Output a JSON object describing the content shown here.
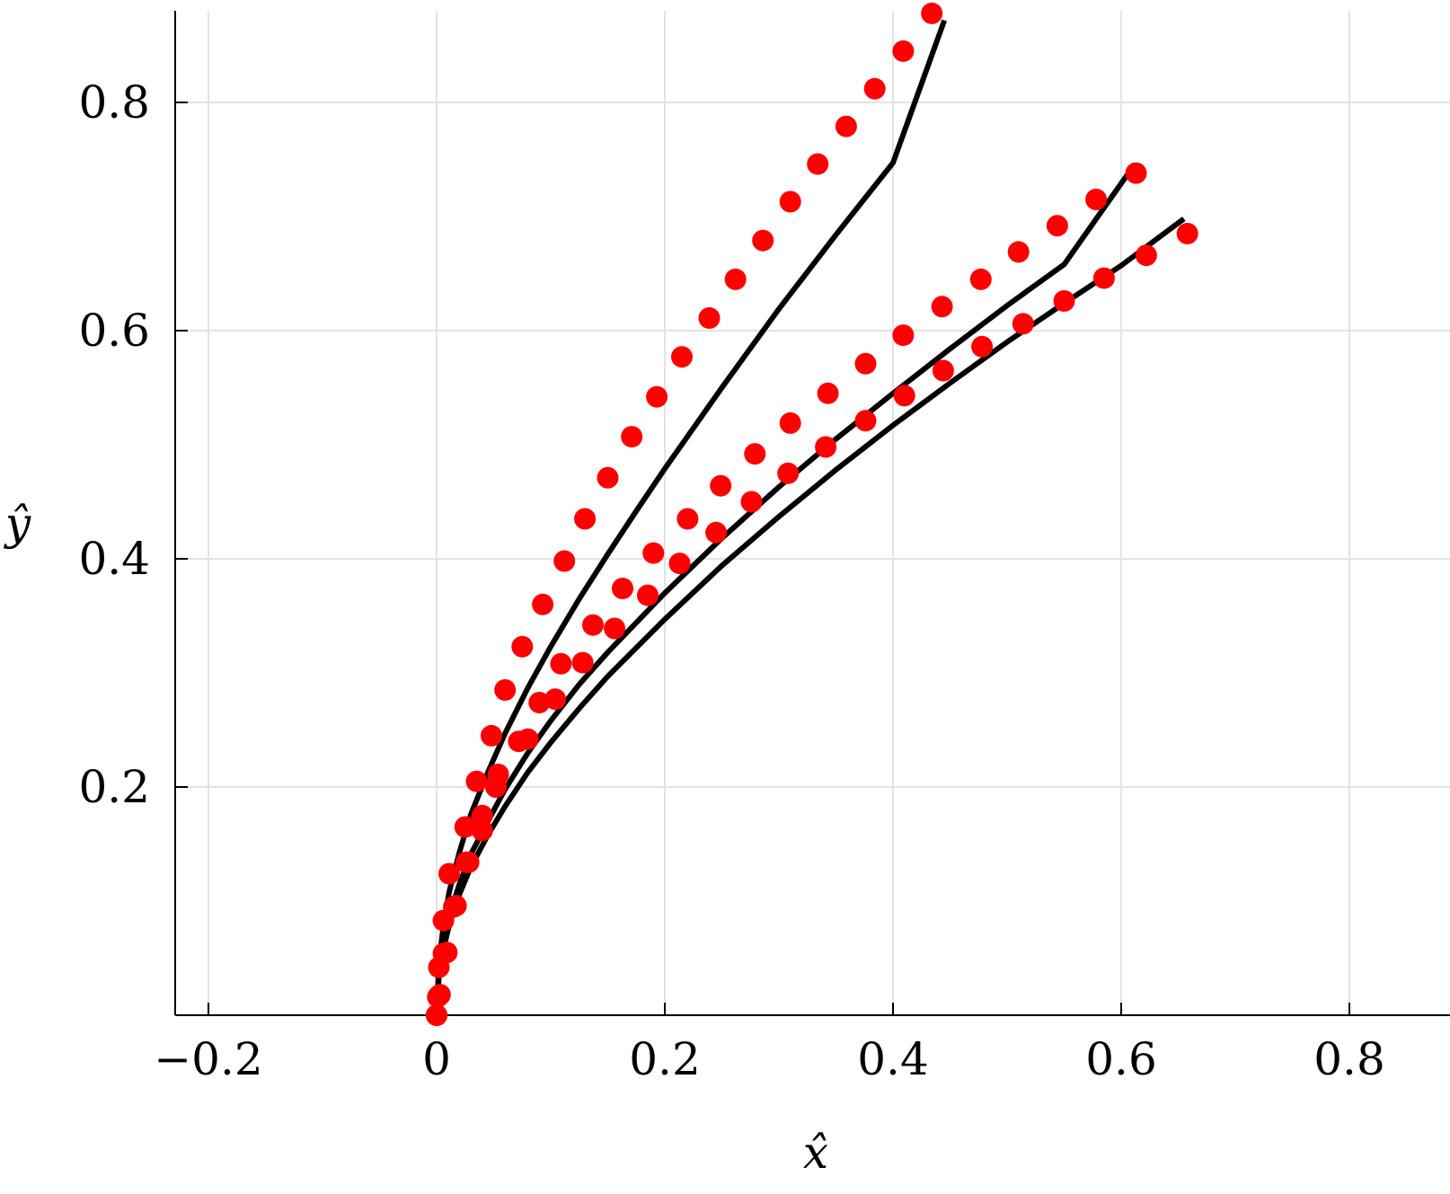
{
  "chart_data": {
    "type": "scatter",
    "title": "",
    "xlabel": "x̂",
    "ylabel": "ŷ",
    "xlim": [
      -0.215,
      0.9
    ],
    "ylim": [
      0,
      0.88
    ],
    "grid": true,
    "xticks": [
      -0.2,
      0,
      0.2,
      0.4,
      0.6,
      0.8
    ],
    "xtick_labels": [
      "−0.2",
      "0",
      "0.2",
      "0.4",
      "0.6",
      "0.8"
    ],
    "yticks": [
      0.2,
      0.4,
      0.6,
      0.8
    ],
    "ytick_labels": [
      "0.2",
      "0.4",
      "0.6",
      "0.8"
    ],
    "marker_color": "#ff0000",
    "line_color": "#000000",
    "series": [
      {
        "kind": "points",
        "points": [
          [
            0,
            0
          ],
          [
            0.001,
            0.016
          ],
          [
            0.002,
            0.042
          ],
          [
            0.006,
            0.083
          ],
          [
            0.011,
            0.124
          ],
          [
            0.025,
            0.165
          ],
          [
            0.035,
            0.205
          ],
          [
            0.048,
            0.245
          ],
          [
            0.06,
            0.285
          ],
          [
            0.075,
            0.323
          ],
          [
            0.093,
            0.36
          ],
          [
            0.112,
            0.398
          ],
          [
            0.13,
            0.435
          ],
          [
            0.15,
            0.471
          ],
          [
            0.171,
            0.507
          ],
          [
            0.193,
            0.542
          ],
          [
            0.215,
            0.577
          ],
          [
            0.239,
            0.611
          ],
          [
            0.262,
            0.645
          ],
          [
            0.286,
            0.679
          ],
          [
            0.31,
            0.713
          ],
          [
            0.334,
            0.746
          ],
          [
            0.359,
            0.779
          ],
          [
            0.384,
            0.812
          ],
          [
            0.409,
            0.845
          ],
          [
            0.434,
            0.878
          ]
        ]
      },
      {
        "kind": "points",
        "points": [
          [
            0,
            0
          ],
          [
            0.002,
            0.017
          ],
          [
            0.006,
            0.054
          ],
          [
            0.015,
            0.095
          ],
          [
            0.026,
            0.134
          ],
          [
            0.04,
            0.175
          ],
          [
            0.054,
            0.211
          ],
          [
            0.072,
            0.24
          ],
          [
            0.09,
            0.274
          ],
          [
            0.109,
            0.308
          ],
          [
            0.137,
            0.342
          ],
          [
            0.163,
            0.374
          ],
          [
            0.19,
            0.405
          ],
          [
            0.22,
            0.435
          ],
          [
            0.249,
            0.464
          ],
          [
            0.279,
            0.492
          ],
          [
            0.31,
            0.519
          ],
          [
            0.343,
            0.545
          ],
          [
            0.376,
            0.571
          ],
          [
            0.409,
            0.596
          ],
          [
            0.443,
            0.621
          ],
          [
            0.477,
            0.645
          ],
          [
            0.51,
            0.669
          ],
          [
            0.544,
            0.692
          ],
          [
            0.578,
            0.715
          ],
          [
            0.613,
            0.738
          ]
        ]
      },
      {
        "kind": "points",
        "points": [
          [
            0,
            0
          ],
          [
            0.003,
            0.018
          ],
          [
            0.009,
            0.055
          ],
          [
            0.017,
            0.096
          ],
          [
            0.028,
            0.134
          ],
          [
            0.04,
            0.162
          ],
          [
            0.052,
            0.2
          ],
          [
            0.08,
            0.242
          ],
          [
            0.104,
            0.277
          ],
          [
            0.128,
            0.309
          ],
          [
            0.156,
            0.339
          ],
          [
            0.185,
            0.368
          ],
          [
            0.213,
            0.396
          ],
          [
            0.245,
            0.423
          ],
          [
            0.276,
            0.45
          ],
          [
            0.308,
            0.475
          ],
          [
            0.341,
            0.498
          ],
          [
            0.376,
            0.521
          ],
          [
            0.41,
            0.543
          ],
          [
            0.444,
            0.565
          ],
          [
            0.478,
            0.586
          ],
          [
            0.514,
            0.606
          ],
          [
            0.55,
            0.626
          ],
          [
            0.585,
            0.646
          ],
          [
            0.622,
            0.666
          ],
          [
            0.658,
            0.685
          ]
        ]
      },
      {
        "kind": "line",
        "points": [
          [
            0,
            0
          ],
          [
            0.002,
            0.045
          ],
          [
            0.006,
            0.079
          ],
          [
            0.011,
            0.108
          ],
          [
            0.02,
            0.143
          ],
          [
            0.03,
            0.176
          ],
          [
            0.045,
            0.213
          ],
          [
            0.06,
            0.247
          ],
          [
            0.08,
            0.287
          ],
          [
            0.1,
            0.323
          ],
          [
            0.125,
            0.365
          ],
          [
            0.15,
            0.404
          ],
          [
            0.175,
            0.442
          ],
          [
            0.2,
            0.479
          ],
          [
            0.25,
            0.55
          ],
          [
            0.3,
            0.619
          ],
          [
            0.35,
            0.684
          ],
          [
            0.4,
            0.747
          ],
          [
            0.445,
            0.872
          ]
        ]
      },
      {
        "kind": "line",
        "points": [
          [
            0,
            0
          ],
          [
            0.002,
            0.036
          ],
          [
            0.006,
            0.064
          ],
          [
            0.011,
            0.087
          ],
          [
            0.02,
            0.115
          ],
          [
            0.03,
            0.141
          ],
          [
            0.045,
            0.17
          ],
          [
            0.06,
            0.198
          ],
          [
            0.08,
            0.23
          ],
          [
            0.1,
            0.258
          ],
          [
            0.125,
            0.29
          ],
          [
            0.15,
            0.318
          ],
          [
            0.2,
            0.37
          ],
          [
            0.25,
            0.418
          ],
          [
            0.3,
            0.463
          ],
          [
            0.35,
            0.505
          ],
          [
            0.4,
            0.545
          ],
          [
            0.45,
            0.584
          ],
          [
            0.5,
            0.622
          ],
          [
            0.55,
            0.658
          ],
          [
            0.612,
            0.746
          ]
        ]
      },
      {
        "kind": "line",
        "points": [
          [
            0,
            0
          ],
          [
            0.002,
            0.033
          ],
          [
            0.006,
            0.058
          ],
          [
            0.011,
            0.079
          ],
          [
            0.02,
            0.106
          ],
          [
            0.03,
            0.13
          ],
          [
            0.045,
            0.158
          ],
          [
            0.06,
            0.183
          ],
          [
            0.08,
            0.213
          ],
          [
            0.1,
            0.239
          ],
          [
            0.125,
            0.269
          ],
          [
            0.15,
            0.297
          ],
          [
            0.2,
            0.347
          ],
          [
            0.25,
            0.394
          ],
          [
            0.3,
            0.437
          ],
          [
            0.35,
            0.478
          ],
          [
            0.4,
            0.517
          ],
          [
            0.45,
            0.554
          ],
          [
            0.5,
            0.59
          ],
          [
            0.55,
            0.624
          ],
          [
            0.6,
            0.657
          ],
          [
            0.655,
            0.698
          ]
        ]
      }
    ]
  }
}
